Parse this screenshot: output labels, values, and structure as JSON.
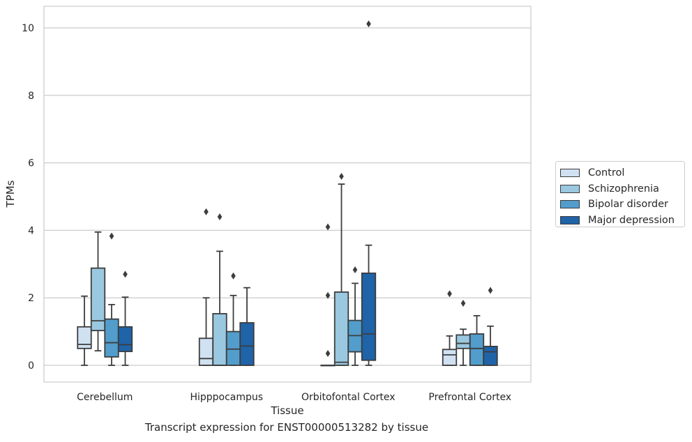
{
  "chart_data": {
    "type": "box",
    "caption": "Transcript expression for ENST00000513282 by tissue",
    "xlabel": "Tissue",
    "ylabel": "TPMs",
    "ylim": [
      -0.5,
      10.65
    ],
    "yticks": [
      0,
      2,
      4,
      6,
      8,
      10
    ],
    "ytick_labels": [
      "0",
      "2",
      "4",
      "6",
      "8",
      "10"
    ],
    "grid": "horizontal",
    "legend_position": "right",
    "categories": [
      "Cerebellum",
      "Hipppocampus",
      "Orbitofontal Cortex",
      "Prefrontal Cortex"
    ],
    "series": [
      {
        "name": "Control",
        "color": "#d0e1f2",
        "boxes": [
          {
            "whislo": 0.0,
            "q1": 0.5,
            "med": 0.62,
            "q3": 1.14,
            "whishi": 2.05,
            "fliers": []
          },
          {
            "whislo": 0.0,
            "q1": 0.0,
            "med": 0.2,
            "q3": 0.8,
            "whishi": 2.0,
            "fliers": [
              4.55
            ]
          },
          {
            "whislo": 0.0,
            "q1": 0.0,
            "med": 0.0,
            "q3": 0.0,
            "whishi": 0.0,
            "fliers": [
              0.35,
              2.07,
              4.1
            ]
          },
          {
            "whislo": 0.0,
            "q1": 0.0,
            "med": 0.31,
            "q3": 0.47,
            "whishi": 0.87,
            "fliers": [
              2.12
            ]
          }
        ]
      },
      {
        "name": "Schizophrenia",
        "color": "#9ac8e0",
        "boxes": [
          {
            "whislo": 0.43,
            "q1": 1.03,
            "med": 1.32,
            "q3": 2.88,
            "whishi": 3.95,
            "fliers": []
          },
          {
            "whislo": 0.0,
            "q1": 0.0,
            "med": 0.0,
            "q3": 1.53,
            "whishi": 3.38,
            "fliers": [
              4.4
            ]
          },
          {
            "whislo": 0.0,
            "q1": 0.0,
            "med": 0.09,
            "q3": 2.17,
            "whishi": 5.37,
            "fliers": [
              5.6
            ]
          },
          {
            "whislo": 0.0,
            "q1": 0.5,
            "med": 0.65,
            "q3": 0.9,
            "whishi": 1.07,
            "fliers": [
              1.84
            ]
          }
        ]
      },
      {
        "name": "Bipolar disorder",
        "color": "#529dcc",
        "boxes": [
          {
            "whislo": 0.0,
            "q1": 0.25,
            "med": 0.67,
            "q3": 1.37,
            "whishi": 1.8,
            "fliers": [
              3.83
            ]
          },
          {
            "whislo": 0.0,
            "q1": 0.0,
            "med": 0.48,
            "q3": 1.0,
            "whishi": 2.07,
            "fliers": [
              2.65
            ]
          },
          {
            "whislo": 0.0,
            "q1": 0.4,
            "med": 0.88,
            "q3": 1.33,
            "whishi": 2.43,
            "fliers": [
              2.83
            ]
          },
          {
            "whislo": 0.0,
            "q1": 0.0,
            "med": 0.5,
            "q3": 0.93,
            "whishi": 1.47,
            "fliers": []
          }
        ]
      },
      {
        "name": "Major depression",
        "color": "#1f63a8",
        "boxes": [
          {
            "whislo": 0.0,
            "q1": 0.41,
            "med": 0.61,
            "q3": 1.14,
            "whishi": 2.02,
            "fliers": [
              2.7
            ]
          },
          {
            "whislo": 0.0,
            "q1": 0.0,
            "med": 0.57,
            "q3": 1.26,
            "whishi": 2.3,
            "fliers": []
          },
          {
            "whislo": 0.0,
            "q1": 0.15,
            "med": 0.93,
            "q3": 2.73,
            "whishi": 3.56,
            "fliers": [
              10.12
            ]
          },
          {
            "whislo": 0.0,
            "q1": 0.0,
            "med": 0.4,
            "q3": 0.56,
            "whishi": 1.16,
            "fliers": [
              2.22
            ]
          }
        ]
      }
    ]
  }
}
